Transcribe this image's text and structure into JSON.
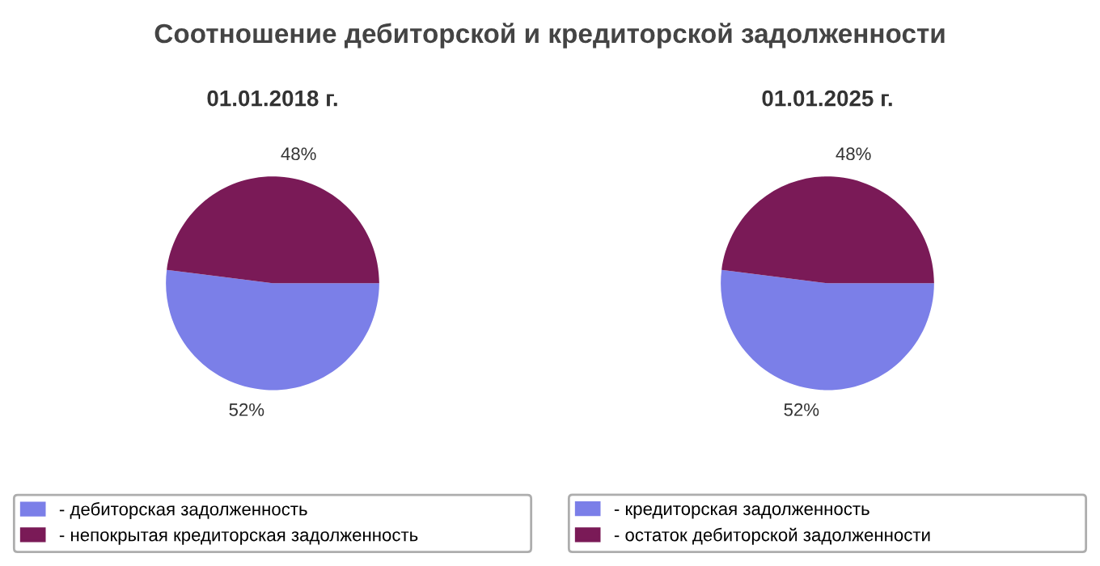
{
  "chart_data": [
    {
      "type": "pie",
      "title": "01.01.2018 г.",
      "annotations": [
        "Соотношение дебиторской и кредиторской задолженности"
      ],
      "categories": [
        "- дебиторская задолженность",
        "- непокрытая кредиторская задолженность"
      ],
      "values": [
        52,
        48
      ],
      "colors": [
        "#7b7fe8",
        "#7a1a57"
      ],
      "value_labels": [
        "52%",
        "48%"
      ],
      "legend": "bottom"
    },
    {
      "type": "pie",
      "title": "01.01.2025 г.",
      "categories": [
        "- кредиторская задолженность",
        "- остаток дебиторской задолженности"
      ],
      "values": [
        52,
        48
      ],
      "colors": [
        "#7b7fe8",
        "#7a1a57"
      ],
      "value_labels": [
        "52%",
        "48%"
      ],
      "legend": "bottom"
    }
  ]
}
